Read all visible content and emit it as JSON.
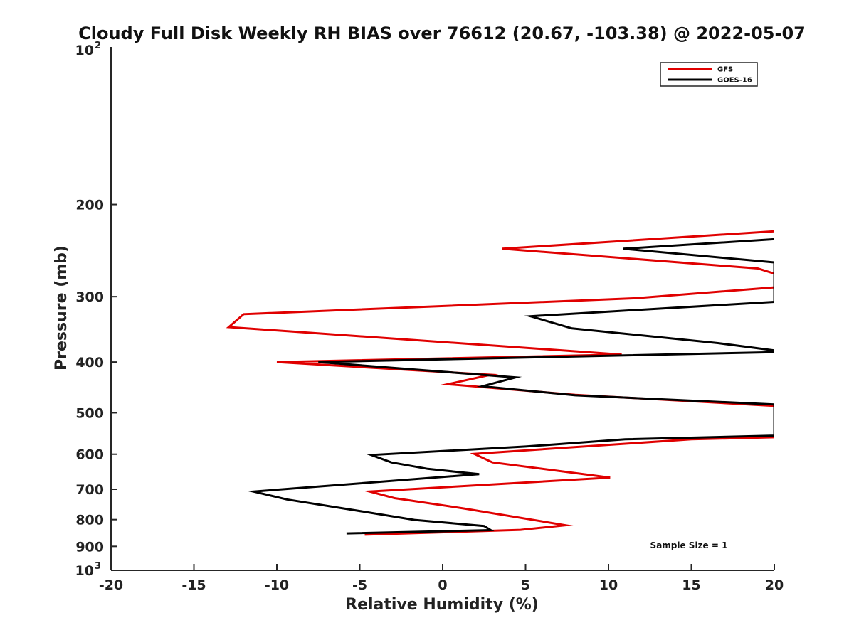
{
  "chart_data": {
    "type": "line",
    "title": "Cloudy Full Disk Weekly RH BIAS over 76612 (20.67, -103.38) @ 2022-05-07",
    "xlabel": "Relative Humidity (%)",
    "ylabel": "Pressure (mb)",
    "xlim": [
      -20,
      20
    ],
    "ylim": [
      100,
      1000
    ],
    "yscale": "log",
    "ydir": "reverse",
    "x_ticks": [
      -20,
      -15,
      -10,
      -5,
      0,
      5,
      10,
      15,
      20
    ],
    "x_tick_labels": [
      "-20",
      "-15",
      "-10",
      "-5",
      "0",
      "5",
      "10",
      "15",
      "20"
    ],
    "y_ticks": [
      200,
      300,
      400,
      500,
      600,
      700,
      800,
      900
    ],
    "y_tick_labels": [
      "200",
      "300",
      "400",
      "500",
      "600",
      "700",
      "800",
      "900"
    ],
    "y_top_label": {
      "base": "10",
      "exp": "2"
    },
    "y_bottom_label": {
      "base": "10",
      "exp": "3"
    },
    "legend_position": "top-right",
    "annotation": "Sample Size = 1",
    "series": [
      {
        "name": "GFS",
        "color": "#e00000",
        "points": [
          [
            20.0,
            225
          ],
          [
            3.6,
            243
          ],
          [
            19.0,
            265
          ],
          [
            20.0,
            271
          ],
          [
            20.0,
            288
          ],
          [
            11.7,
            302
          ],
          [
            -12.0,
            324
          ],
          [
            -12.9,
            343
          ],
          [
            10.8,
            387
          ],
          [
            -10.0,
            400
          ],
          [
            2.9,
            423
          ],
          [
            0.3,
            441
          ],
          [
            8.0,
            462
          ],
          [
            20.0,
            485
          ],
          [
            20.0,
            557
          ],
          [
            15.0,
            562
          ],
          [
            1.9,
            599
          ],
          [
            3.0,
            622
          ],
          [
            10.1,
            665
          ],
          [
            -4.4,
            707
          ],
          [
            -2.9,
            728
          ],
          [
            1.3,
            762
          ],
          [
            7.4,
            820
          ],
          [
            4.7,
            837
          ],
          [
            -4.7,
            855
          ]
        ]
      },
      {
        "name": "GOES-16",
        "color": "#000000",
        "points": [
          [
            20.0,
            233
          ],
          [
            10.9,
            243
          ],
          [
            20.0,
            258
          ],
          [
            20.0,
            307
          ],
          [
            5.3,
            327
          ],
          [
            7.8,
            345
          ],
          [
            16.6,
            368
          ],
          [
            20.0,
            380
          ],
          [
            20.0,
            383
          ],
          [
            -7.5,
            400
          ],
          [
            4.4,
            428
          ],
          [
            2.4,
            445
          ],
          [
            8.0,
            463
          ],
          [
            20.0,
            482
          ],
          [
            20.0,
            553
          ],
          [
            11.0,
            562
          ],
          [
            5.0,
            580
          ],
          [
            -4.3,
            602
          ],
          [
            -3.1,
            622
          ],
          [
            -0.9,
            640
          ],
          [
            2.2,
            655
          ],
          [
            -11.4,
            707
          ],
          [
            -9.4,
            732
          ],
          [
            -4.6,
            774
          ],
          [
            -1.7,
            801
          ],
          [
            2.5,
            823
          ],
          [
            2.9,
            838
          ],
          [
            -5.8,
            850
          ]
        ]
      }
    ]
  }
}
